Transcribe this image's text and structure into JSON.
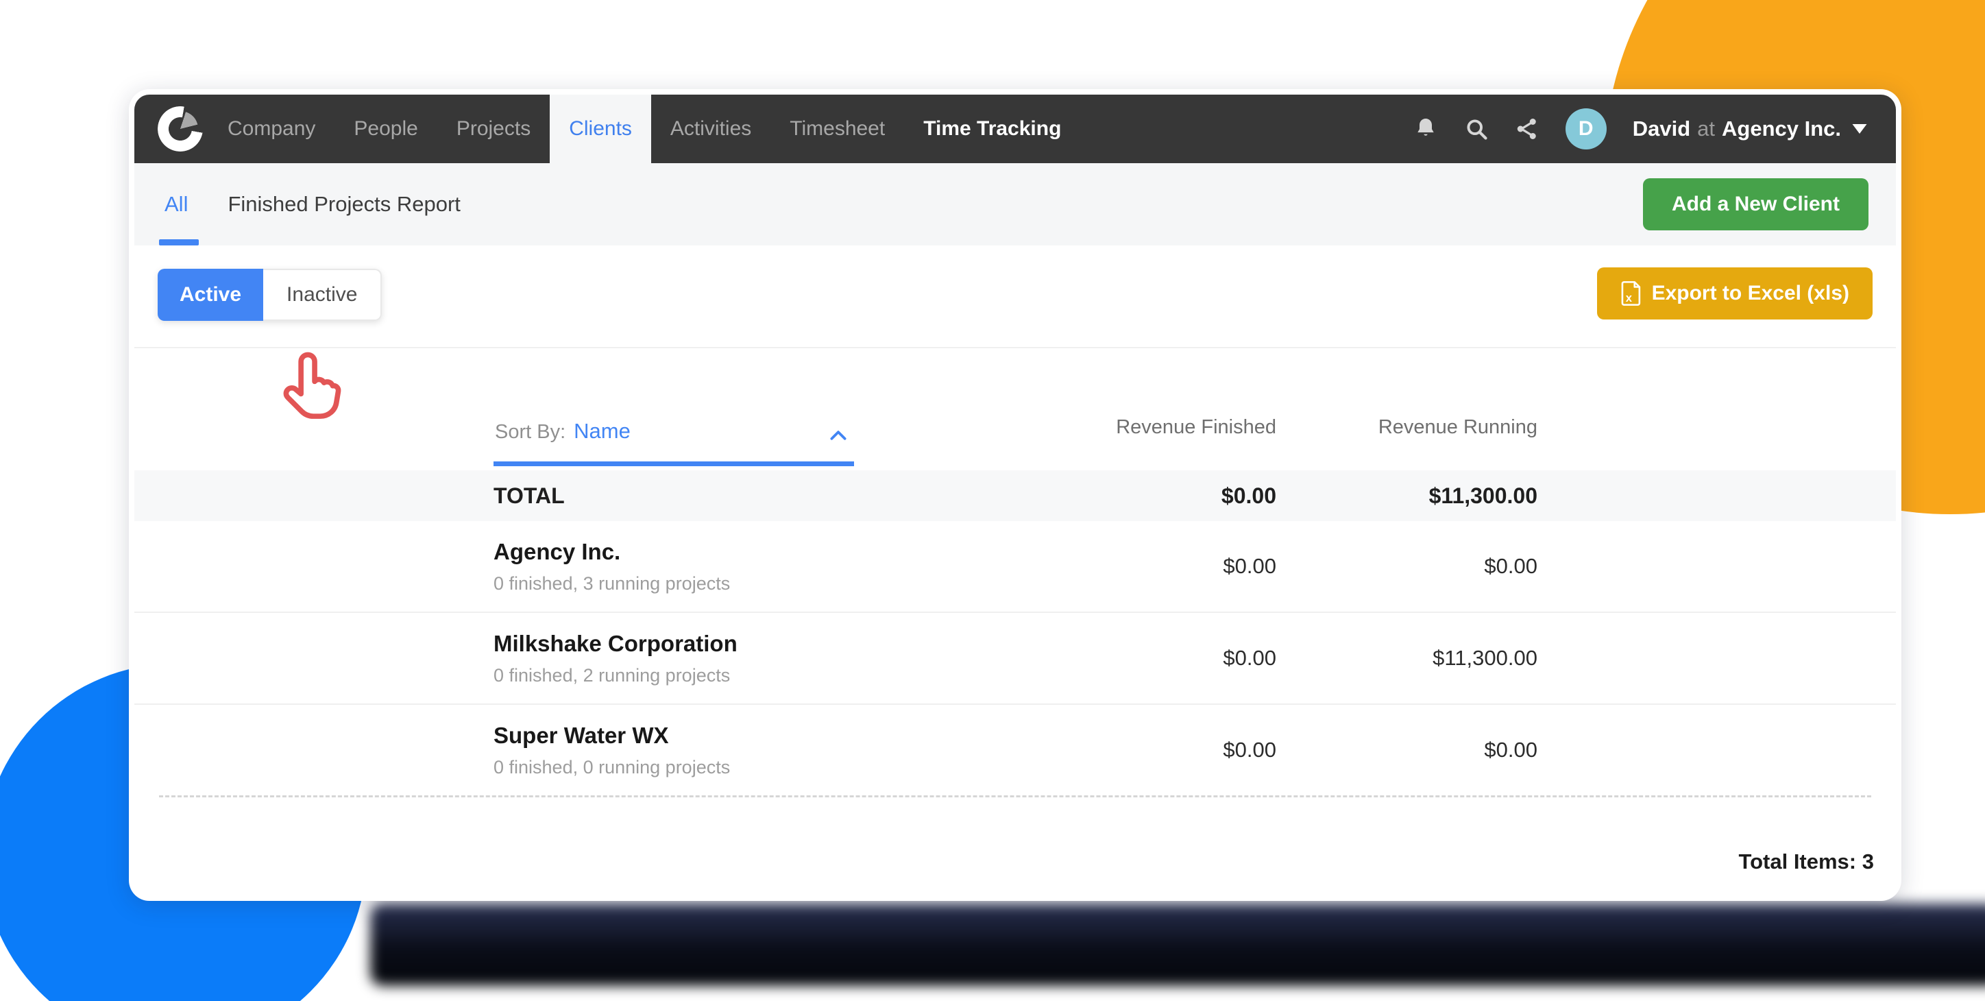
{
  "navbar": {
    "logo_name": "donut-pie-logo",
    "items": [
      {
        "label": "Company"
      },
      {
        "label": "People"
      },
      {
        "label": "Projects"
      },
      {
        "label": "Clients",
        "active": true
      },
      {
        "label": "Activities"
      },
      {
        "label": "Timesheet"
      },
      {
        "label": "Time Tracking",
        "strong": true
      }
    ],
    "user": {
      "initial": "D",
      "name": "David",
      "at": "at",
      "company": "Agency Inc."
    }
  },
  "subnav": {
    "tabs": [
      {
        "label": "All",
        "active": true
      },
      {
        "label": "Finished Projects Report",
        "active": false
      }
    ],
    "add_button_label": "Add a New Client"
  },
  "toolbar": {
    "toggle": [
      {
        "label": "Active",
        "selected": true
      },
      {
        "label": "Inactive",
        "selected": false
      }
    ],
    "export_label": "Export to Excel (xls)"
  },
  "table": {
    "sort_by_label": "Sort By:",
    "sort_value": "Name",
    "columns": [
      "Revenue Finished",
      "Revenue Running"
    ],
    "total_row": {
      "name": "TOTAL",
      "revenue_finished": "$0.00",
      "revenue_running": "$11,300.00"
    },
    "rows": [
      {
        "name": "Agency Inc.",
        "subtitle": "0 finished, 3 running projects",
        "revenue_finished": "$0.00",
        "revenue_running": "$0.00"
      },
      {
        "name": "Milkshake Corporation",
        "subtitle": "0 finished, 2 running projects",
        "revenue_finished": "$0.00",
        "revenue_running": "$11,300.00"
      },
      {
        "name": "Super Water WX",
        "subtitle": "0 finished, 0 running projects",
        "revenue_finished": "$0.00",
        "revenue_running": "$0.00"
      }
    ],
    "footer_label": "Total Items:",
    "footer_count": "3"
  },
  "colors": {
    "accent_blue": "#4285f4",
    "navbar_bg": "#373737",
    "green_button": "#46a24a",
    "yellow_button": "#e5a90f",
    "avatar_teal": "#85c9d9",
    "cursor_red": "#e25555",
    "orange_circle": "#f9a61a",
    "blue_circle": "#0b7cf9"
  }
}
